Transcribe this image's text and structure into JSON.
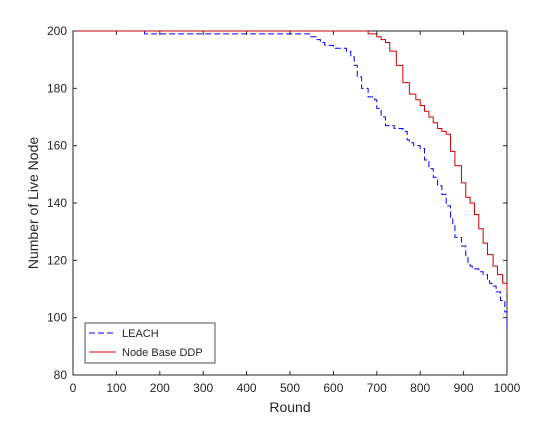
{
  "chart_data": {
    "type": "line",
    "xlabel": "Round",
    "ylabel": "Number of Live Node",
    "xlim": [
      0,
      1000
    ],
    "ylim": [
      80,
      200
    ],
    "xticks": [
      0,
      100,
      200,
      300,
      400,
      500,
      600,
      700,
      800,
      900,
      1000
    ],
    "yticks": [
      80,
      100,
      120,
      140,
      160,
      180,
      200
    ],
    "grid": false,
    "legend_position": "bottom-left",
    "series": [
      {
        "name": "LEACH",
        "color": "#0000ff",
        "style": "dashed",
        "x": [
          0,
          160,
          165,
          520,
          545,
          560,
          570,
          580,
          600,
          630,
          640,
          648,
          655,
          665,
          680,
          695,
          700,
          710,
          720,
          740,
          760,
          770,
          775,
          785,
          800,
          810,
          820,
          830,
          840,
          850,
          860,
          870,
          875,
          880,
          895,
          905,
          910,
          915,
          920,
          935,
          945,
          955,
          960,
          965,
          975,
          985,
          995,
          1000
        ],
        "y": [
          200,
          200,
          199,
          199,
          198,
          197,
          196,
          195,
          194,
          193,
          191,
          188,
          184,
          180,
          177,
          176,
          173,
          170,
          167,
          166,
          165,
          162,
          161,
          160,
          159,
          155,
          152,
          149,
          146,
          143,
          139,
          135,
          132,
          128,
          125,
          121,
          119,
          118,
          117,
          116,
          115,
          113,
          112,
          111,
          109,
          106,
          102,
          96
        ]
      },
      {
        "name": "Node Base DDP",
        "color": "#cc0000",
        "style": "solid",
        "x": [
          0,
          650,
          680,
          700,
          710,
          720,
          730,
          745,
          760,
          775,
          790,
          800,
          810,
          820,
          830,
          840,
          850,
          860,
          870,
          880,
          895,
          905,
          915,
          925,
          935,
          945,
          955,
          968,
          978,
          990,
          1000
        ],
        "y": [
          200,
          200,
          199,
          198,
          197,
          196,
          193,
          188,
          182,
          178,
          176,
          174,
          172,
          170,
          168,
          166,
          165,
          164,
          158,
          153,
          147,
          142,
          140,
          136,
          131,
          126,
          122,
          118,
          115,
          112,
          109
        ]
      }
    ]
  }
}
